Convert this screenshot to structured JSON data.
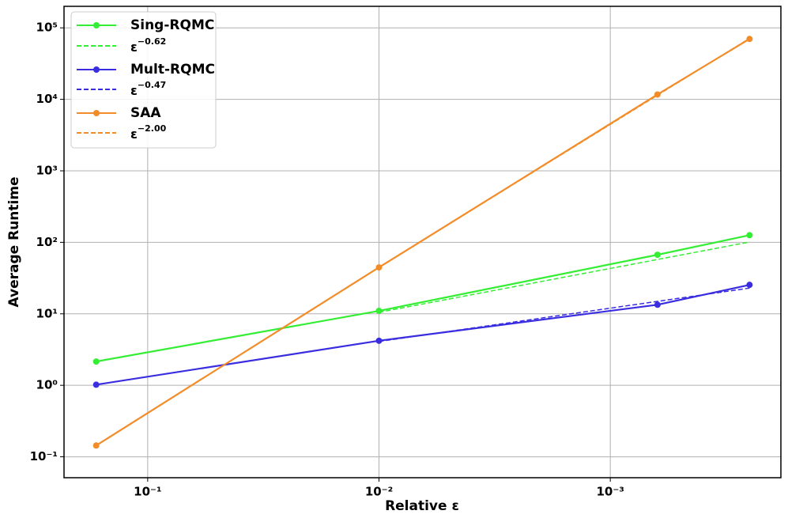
{
  "chart_data": {
    "type": "line",
    "xlabel": "Relative ε",
    "ylabel": "Average Runtime",
    "xscale": "log",
    "yscale": "log",
    "grid": true,
    "legend": "upper left",
    "xlim": [
      0.23,
      0.000183
    ],
    "ylim": [
      0.051,
      200000
    ],
    "xticks": [
      {
        "value": 0.1,
        "label": "10⁻¹"
      },
      {
        "value": 0.01,
        "label": "10⁻²"
      },
      {
        "value": 0.001,
        "label": "10⁻³"
      }
    ],
    "yticks": [
      {
        "value": 0.1,
        "label": "10⁻¹"
      },
      {
        "value": 1,
        "label": "10⁰"
      },
      {
        "value": 10,
        "label": "10¹"
      },
      {
        "value": 100,
        "label": "10²"
      },
      {
        "value": 1000,
        "label": "10³"
      },
      {
        "value": 10000,
        "label": "10⁴"
      },
      {
        "value": 100000,
        "label": "10⁵"
      }
    ],
    "series": [
      {
        "name": "Sing-RQMC",
        "color": "#33ee33",
        "style": "solid",
        "markers": true,
        "x": [
          0.167,
          0.01,
          0.000625,
          0.00025
        ],
        "values": [
          2.15,
          11,
          67,
          126
        ]
      },
      {
        "name": "ε",
        "exponent": "−0.62",
        "color": "#33ee33",
        "style": "dashed",
        "markers": false,
        "x": [
          0.01,
          0.00025
        ],
        "values": [
          10.5,
          101
        ]
      },
      {
        "name": "Mult-RQMC",
        "color": "#3a2de0",
        "style": "solid",
        "markers": true,
        "x": [
          0.167,
          0.01,
          0.000625,
          0.00025
        ],
        "values": [
          1.02,
          4.2,
          13.4,
          25.4
        ]
      },
      {
        "name": "ε",
        "exponent": "−0.47",
        "color": "#3a2de0",
        "style": "dashed",
        "markers": false,
        "x": [
          0.01,
          0.00025
        ],
        "values": [
          4.1,
          22.9
        ]
      },
      {
        "name": "SAA",
        "color": "#f28c28",
        "style": "solid",
        "markers": true,
        "x": [
          0.167,
          0.01,
          0.000625,
          0.00025
        ],
        "values": [
          0.144,
          44.6,
          11700,
          70000
        ]
      },
      {
        "name": "ε",
        "exponent": "−2.00",
        "color": "#f28c28",
        "style": "dashed",
        "markers": false,
        "x": [
          0.01,
          0.00025
        ],
        "values": [
          44.6,
          71360
        ]
      }
    ]
  }
}
